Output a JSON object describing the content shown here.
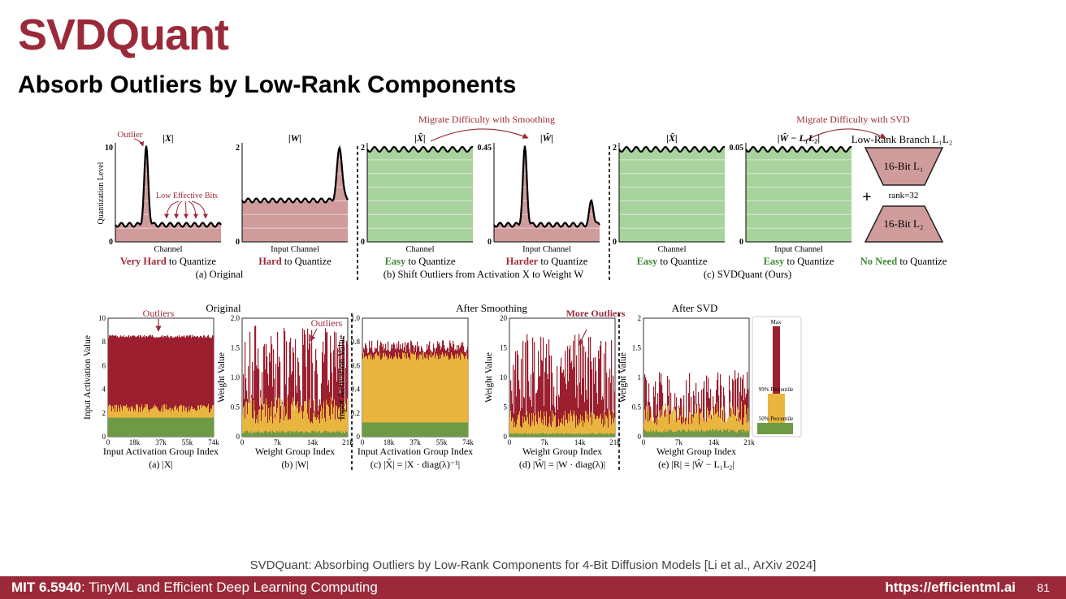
{
  "slide": {
    "title": "SVDQuant",
    "subtitle": "Absorb Outliers by Low-Rank Components",
    "citation": "SVDQuant: Absorbing Outliers by Low-Rank Components for 4-Bit Diffusion Models [Li et al., ArXiv 2024]",
    "course_bold": "MIT 6.5940",
    "course_rest": ": TinyML and Efficient Deep Learning Computing",
    "url": "https://efficientml.ai",
    "page": "81"
  },
  "top_figure": {
    "annot_smoothing": "Migrate Difficulty with Smoothing",
    "annot_svd": "Migrate Difficulty with SVD",
    "outlier": "Outlier",
    "low_effective_bits": "Low Effective Bits",
    "ylabel": "Quantization Level",
    "panels": [
      {
        "title": "|X|",
        "ymax": "10",
        "ymin": "0",
        "xlabel": "Channel",
        "quant_strong": "Very Hard",
        "quant_rest": " to Quantize",
        "difficulty": "hard"
      },
      {
        "title": "|W|",
        "ymax": "2",
        "ymin": "0",
        "xlabel": "Input Channel",
        "quant_strong": "Hard",
        "quant_rest": " to Quantize",
        "difficulty": "hard"
      },
      {
        "title": "|X̂|",
        "ymax": "2",
        "ymin": "0",
        "xlabel": "Channel",
        "quant_strong": "Easy",
        "quant_rest": " to Quantize",
        "difficulty": "easy"
      },
      {
        "title": "|Ŵ|",
        "ymax": "0.45",
        "ymin": "0",
        "xlabel": "Input Channel",
        "quant_strong": "Harder",
        "quant_rest": " to Quantize",
        "difficulty": "hard"
      },
      {
        "title": "|X̂|",
        "ymax": "2",
        "ymin": "0",
        "xlabel": "Channel",
        "quant_strong": "Easy",
        "quant_rest": " to Quantize",
        "difficulty": "easy"
      },
      {
        "title": "|Ŵ − L₁L₂|",
        "ymax": "0.05",
        "ymin": "0",
        "xlabel": "Input Channel",
        "quant_strong": "Easy",
        "quant_rest": " to Quantize",
        "difficulty": "easy"
      }
    ],
    "lowrank": {
      "title": "Low-Rank Branch L₁L₂",
      "l1": "16-Bit L₁",
      "l2": "16-Bit L₂",
      "plus": "+",
      "rank": "rank=32",
      "quant_strong": "No Need",
      "quant_rest": " to Quantize"
    },
    "captions": {
      "a": "(a) Original",
      "b": "(b) Shift Outliers from Activation X to Weight W",
      "c": "(c) SVDQuant (Ours)"
    }
  },
  "bottom_figure": {
    "group_titles": {
      "original": "Original",
      "smoothing": "After Smoothing",
      "svd": "After SVD"
    },
    "legend": {
      "max": "Max",
      "p99": "99% Percentile",
      "p50": "50% Percentile"
    },
    "panels": [
      {
        "ylabel": "Input Activation Value",
        "xlabel": "Input Activation Group Index",
        "caption": "(a) |X|",
        "yticks": [
          "0",
          "2",
          "4",
          "6",
          "8",
          "10"
        ],
        "xticks": [
          "0",
          "18k",
          "37k",
          "55k",
          "74k"
        ],
        "annotation": "Outliers",
        "max": 8.5,
        "p99": 2.4,
        "p50": 1.6
      },
      {
        "ylabel": "Weight Value",
        "xlabel": "Weight Group Index",
        "caption": "(b) |W|",
        "yticks": [
          "0",
          "0.5",
          "1.0",
          "1.5",
          "2.0"
        ],
        "xticks": [
          "0",
          "7k",
          "14k",
          "21k"
        ],
        "annotation": "Outliers",
        "max": 1.5,
        "p99": 0.45,
        "p50": 0.08
      },
      {
        "ylabel": "Input Activation Value",
        "xlabel": "Input Activation Group Index",
        "caption": "(c) |X̂| = |X · diag(λ)⁻¹|",
        "yticks": [
          "0",
          "0.2",
          "0.4",
          "0.6",
          "0.8",
          "1.0"
        ],
        "xticks": [
          "0",
          "18k",
          "37k",
          "55k",
          "74k"
        ],
        "annotation": "",
        "max": 0.78,
        "p99": 0.7,
        "p50": 0.12
      },
      {
        "ylabel": "Weight Value",
        "xlabel": "Weight Group Index",
        "caption": "(d) |Ŵ| = |W · diag(λ)|",
        "yticks": [
          "0",
          "5",
          "10",
          "15",
          "20"
        ],
        "xticks": [
          "0",
          "7k",
          "14k",
          "21k"
        ],
        "annotation": "More Outliers",
        "max": 14,
        "p99": 3,
        "p50": 0.5
      },
      {
        "ylabel": "Weight Value",
        "xlabel": "Weight Group Index",
        "caption": "(e) |R| = |Ŵ − L₁L₂|",
        "yticks": [
          "0",
          "0.5",
          "1",
          "1.5",
          "2"
        ],
        "xticks": [
          "0",
          "7k",
          "14k",
          "21k"
        ],
        "annotation": "",
        "max": 0.9,
        "p99": 0.4,
        "p50": 0.1
      }
    ]
  },
  "colors": {
    "brand": "#9a2a3a",
    "hard_fill": "#cf9b9b",
    "easy_fill": "#a9d39d",
    "easy_text": "#3a8a2e",
    "max_color": "#9b1f2e",
    "p99_color": "#e8b53f",
    "p50_color": "#6f9a45"
  }
}
